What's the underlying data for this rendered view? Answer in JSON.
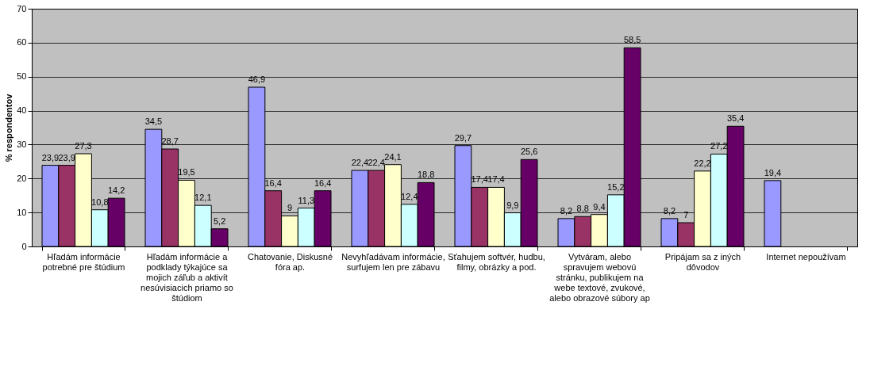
{
  "chart_data": {
    "type": "bar",
    "ylabel": "% respondentov",
    "categories": [
      "Hľadám informácie potrebné pre štúdium",
      "Hľadám informácie a podklady týkajúce sa mojich záľub a aktivít nesúvisiacich priamo so štúdiom",
      "Chatovanie, Diskusné fóra ap.",
      "Nevyhľadávam informácie, surfujem len pre zábavu",
      "Sťahujem softvér, hudbu, filmy, obrázky a pod.",
      "Vytváram, alebo spravujem webovú stránku, publikujem na webe textové, zvukové, alebo obrazové súbory ap",
      "Pripájam sa z iných dôvodov",
      "Internet nepoužívam"
    ],
    "series": [
      {
        "color": "#9999ff",
        "values": [
          23.9,
          34.5,
          46.9,
          22.4,
          29.7,
          8.2,
          8.2,
          19.4
        ],
        "value_labels": [
          "23,9",
          "34,5",
          "46,9",
          "22,4",
          "29,7",
          "8,2",
          "8,2",
          "19,4"
        ]
      },
      {
        "color": "#993366",
        "values": [
          23.9,
          28.7,
          16.4,
          22.4,
          17.4,
          8.8,
          7,
          null
        ],
        "value_labels": [
          "23,9",
          "28,7",
          "16,4",
          "22,4",
          "17,4",
          "8,8",
          "7",
          null
        ]
      },
      {
        "color": "#ffffcc",
        "values": [
          27.3,
          19.5,
          9,
          24.1,
          17.4,
          9.4,
          22.2,
          null
        ],
        "value_labels": [
          "27,3",
          "19,5",
          "9",
          "24,1",
          "17,4",
          "9,4",
          "22,2",
          null
        ]
      },
      {
        "color": "#ccffff",
        "values": [
          10.8,
          12.1,
          11.3,
          12.4,
          9.9,
          15.2,
          27.2,
          null
        ],
        "value_labels": [
          "10,8",
          "12,1",
          "11,3",
          "12,4",
          "9,9",
          "15,2",
          "27,2",
          null
        ]
      },
      {
        "color": "#660066",
        "values": [
          14.2,
          5.2,
          16.4,
          18.8,
          25.6,
          58.5,
          35.4,
          null
        ],
        "value_labels": [
          "14,2",
          "5,2",
          "16,4",
          "18,8",
          "25,6",
          "58,5",
          "35,4",
          null
        ]
      }
    ],
    "ylim": [
      0,
      70
    ],
    "yticks": [
      0,
      10,
      20,
      30,
      40,
      50,
      60,
      70
    ],
    "grid": "y",
    "legend": false
  }
}
